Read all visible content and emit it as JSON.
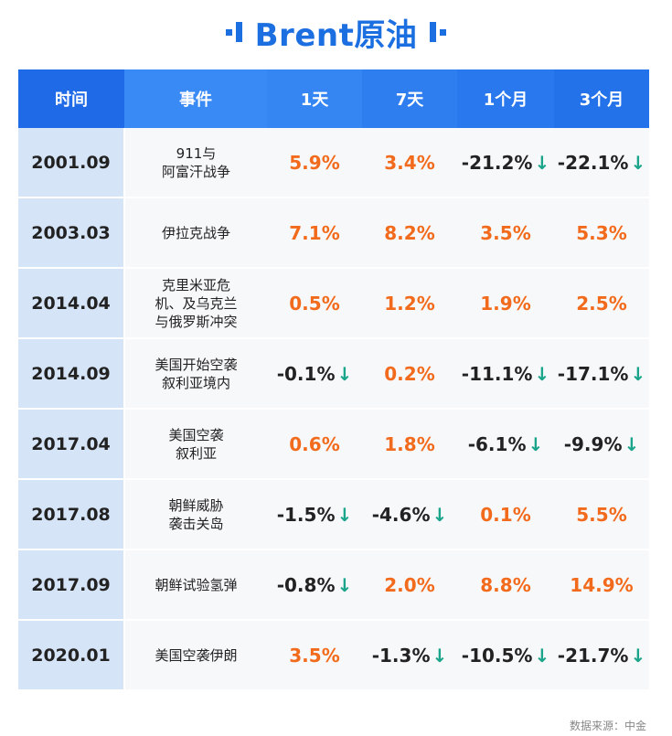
{
  "title": "Brent原油",
  "columns": [
    "时间",
    "事件",
    "1天",
    "7天",
    "1个月",
    "3个月"
  ],
  "rows": [
    {
      "time": "2001.09",
      "event": "911与\n阿富汗战争",
      "values": [
        "5.9%",
        "3.4%",
        "-21.2%",
        "-22.1%"
      ]
    },
    {
      "time": "2003.03",
      "event": "伊拉克战争",
      "values": [
        "7.1%",
        "8.2%",
        "3.5%",
        "5.3%"
      ]
    },
    {
      "time": "2014.04",
      "event": "克里米亚危\n机、及乌克兰\n与俄罗斯冲突",
      "values": [
        "0.5%",
        "1.2%",
        "1.9%",
        "2.5%"
      ]
    },
    {
      "time": "2014.09",
      "event": "美国开始空袭\n叙利亚境内",
      "values": [
        "-0.1%",
        "0.2%",
        "-11.1%",
        "-17.1%"
      ]
    },
    {
      "time": "2017.04",
      "event": "美国空袭\n叙利亚",
      "values": [
        "0.6%",
        "1.8%",
        "-6.1%",
        "-9.9%"
      ]
    },
    {
      "time": "2017.08",
      "event": "朝鲜威胁\n袭击关岛",
      "values": [
        "-1.5%",
        "-4.6%",
        "0.1%",
        "5.5%"
      ]
    },
    {
      "time": "2017.09",
      "event": "朝鲜试验氢弹",
      "values": [
        "-0.8%",
        "2.0%",
        "8.8%",
        "14.9%"
      ]
    },
    {
      "time": "2020.01",
      "event": "美国空袭伊朗",
      "values": [
        "3.5%",
        "-1.3%",
        "-10.5%",
        "-21.7%"
      ]
    }
  ],
  "down_arrow": "↓",
  "source": "数据来源：中金",
  "colors": {
    "accent": "#1c6fe0",
    "positive": "#f26b1d",
    "negative_arrow": "#1aa58a"
  }
}
